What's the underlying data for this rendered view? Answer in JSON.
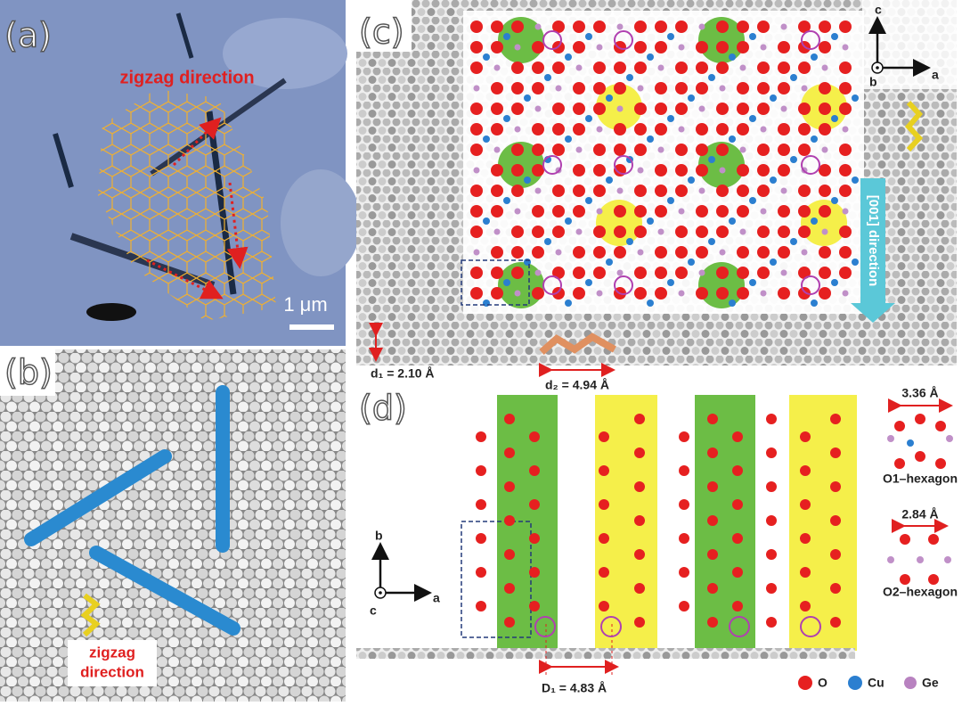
{
  "panels": {
    "a": {
      "label": "(a)",
      "annotation": "zigzag direction",
      "scale_bar": "1 μm"
    },
    "b": {
      "label": "(b)",
      "annotation": [
        "zigzag",
        "direction"
      ]
    },
    "c": {
      "label": "(c)",
      "axes": {
        "c": "c",
        "b": "b",
        "a": "a"
      },
      "arrow_label": "[001] direction",
      "d1": "d₁ = 2.10 Å",
      "d2": "d₂ = 4.94 Å"
    },
    "d": {
      "label": "(d)",
      "axes": {
        "b": "b",
        "c": "c",
        "a": "a"
      },
      "D1": "D₁ = 4.83 Å",
      "hexagons": [
        {
          "width": "3.36 Å",
          "name": "O1–hexagon"
        },
        {
          "width": "2.84 Å",
          "name": "O2–hexagon"
        }
      ],
      "legend": [
        "O",
        "Cu",
        "Ge"
      ]
    }
  }
}
